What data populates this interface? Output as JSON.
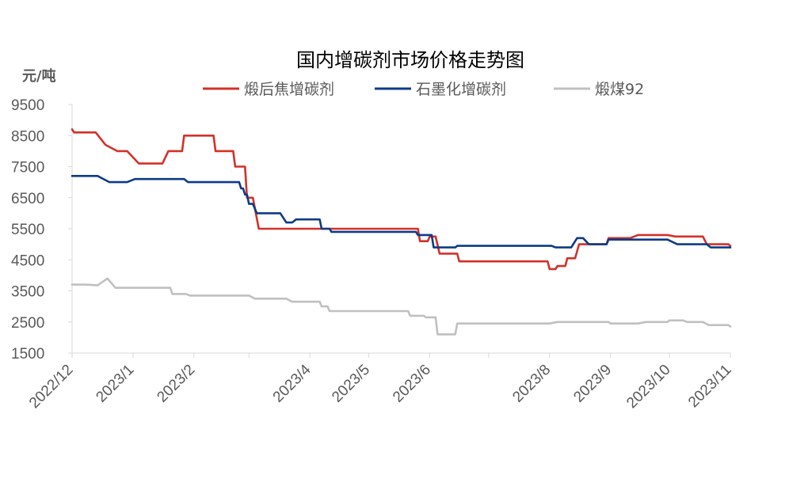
{
  "chart_data": {
    "type": "line",
    "title": "国内增碳剂市场价格走势图",
    "ylabel": "元/吨",
    "xlabel": "",
    "ylim": [
      1500,
      9500
    ],
    "yticks": [
      1500,
      2500,
      3500,
      4500,
      5500,
      6500,
      7500,
      8500,
      9500
    ],
    "xlim": [
      "2022-12-01",
      "2023-11-01"
    ],
    "xticks": [
      {
        "date": "2022-12-01",
        "label": "2022/12"
      },
      {
        "date": "2023-01-01",
        "label": "2023/1"
      },
      {
        "date": "2023-02-01",
        "label": "2023/2"
      },
      {
        "date": "2023-03-01",
        "label": ""
      },
      {
        "date": "2023-04-01",
        "label": "2023/4"
      },
      {
        "date": "2023-05-01",
        "label": "2023/5"
      },
      {
        "date": "2023-06-01",
        "label": "2023/6"
      },
      {
        "date": "2023-07-01",
        "label": ""
      },
      {
        "date": "2023-08-01",
        "label": "2023/8"
      },
      {
        "date": "2023-09-01",
        "label": "2023/9"
      },
      {
        "date": "2023-10-01",
        "label": "2023/10"
      },
      {
        "date": "2023-11-01",
        "label": "2023/11"
      }
    ],
    "grid": false,
    "legend_position": "top",
    "series": [
      {
        "name": "煅后焦增碳剂",
        "color": "#d2312a",
        "points": [
          [
            "2022-12-01",
            8700
          ],
          [
            "2022-12-02",
            8600
          ],
          [
            "2022-12-13",
            8600
          ],
          [
            "2022-12-18",
            8200
          ],
          [
            "2022-12-24",
            8000
          ],
          [
            "2022-12-29",
            8000
          ],
          [
            "2023-01-04",
            7600
          ],
          [
            "2023-01-16",
            7600
          ],
          [
            "2023-01-19",
            8000
          ],
          [
            "2023-01-26",
            8000
          ],
          [
            "2023-01-27",
            8500
          ],
          [
            "2023-02-11",
            8500
          ],
          [
            "2023-02-12",
            8000
          ],
          [
            "2023-02-21",
            8000
          ],
          [
            "2023-02-22",
            7500
          ],
          [
            "2023-02-27",
            7500
          ],
          [
            "2023-02-28",
            6500
          ],
          [
            "2023-03-03",
            6500
          ],
          [
            "2023-03-06",
            5500
          ],
          [
            "2023-04-21",
            5500
          ],
          [
            "2023-04-24",
            5500
          ],
          [
            "2023-05-26",
            5500
          ],
          [
            "2023-05-27",
            5100
          ],
          [
            "2023-05-31",
            5100
          ],
          [
            "2023-06-01",
            5250
          ],
          [
            "2023-06-04",
            5250
          ],
          [
            "2023-06-06",
            4700
          ],
          [
            "2023-06-15",
            4700
          ],
          [
            "2023-06-16",
            4450
          ],
          [
            "2023-07-31",
            4450
          ],
          [
            "2023-08-01",
            4200
          ],
          [
            "2023-08-04",
            4200
          ],
          [
            "2023-08-05",
            4300
          ],
          [
            "2023-08-09",
            4300
          ],
          [
            "2023-08-10",
            4550
          ],
          [
            "2023-08-14",
            4550
          ],
          [
            "2023-08-16",
            5000
          ],
          [
            "2023-08-23",
            5000
          ],
          [
            "2023-08-30",
            5000
          ],
          [
            "2023-08-31",
            5200
          ],
          [
            "2023-09-11",
            5200
          ],
          [
            "2023-09-15",
            5300
          ],
          [
            "2023-09-30",
            5300
          ],
          [
            "2023-10-04",
            5250
          ],
          [
            "2023-10-18",
            5250
          ],
          [
            "2023-10-20",
            5000
          ],
          [
            "2023-10-31",
            5000
          ],
          [
            "2023-11-01",
            4950
          ]
        ]
      },
      {
        "name": "石墨化增碳剂",
        "color": "#0d3b86",
        "points": [
          [
            "2022-12-01",
            7200
          ],
          [
            "2022-12-14",
            7200
          ],
          [
            "2022-12-20",
            7000
          ],
          [
            "2022-12-29",
            7000
          ],
          [
            "2023-01-02",
            7100
          ],
          [
            "2023-01-27",
            7100
          ],
          [
            "2023-01-29",
            7000
          ],
          [
            "2023-02-24",
            7000
          ],
          [
            "2023-02-25",
            6800
          ],
          [
            "2023-02-26",
            6800
          ],
          [
            "2023-02-27",
            6600
          ],
          [
            "2023-02-28",
            6600
          ],
          [
            "2023-03-01",
            6300
          ],
          [
            "2023-03-03",
            6300
          ],
          [
            "2023-03-05",
            6000
          ],
          [
            "2023-03-17",
            6000
          ],
          [
            "2023-03-20",
            5700
          ],
          [
            "2023-03-23",
            5700
          ],
          [
            "2023-03-25",
            5800
          ],
          [
            "2023-04-06",
            5800
          ],
          [
            "2023-04-07",
            5500
          ],
          [
            "2023-04-11",
            5500
          ],
          [
            "2023-04-12",
            5400
          ],
          [
            "2023-05-25",
            5400
          ],
          [
            "2023-05-26",
            5300
          ],
          [
            "2023-06-02",
            5300
          ],
          [
            "2023-06-03",
            4900
          ],
          [
            "2023-06-14",
            4900
          ],
          [
            "2023-06-15",
            4950
          ],
          [
            "2023-08-02",
            4950
          ],
          [
            "2023-08-04",
            4900
          ],
          [
            "2023-08-12",
            4900
          ],
          [
            "2023-08-15",
            5200
          ],
          [
            "2023-08-18",
            5200
          ],
          [
            "2023-08-21",
            5000
          ],
          [
            "2023-08-30",
            5000
          ],
          [
            "2023-08-31",
            5150
          ],
          [
            "2023-09-30",
            5150
          ],
          [
            "2023-10-05",
            5000
          ],
          [
            "2023-10-20",
            5000
          ],
          [
            "2023-10-22",
            4900
          ],
          [
            "2023-11-01",
            4900
          ]
        ]
      },
      {
        "name": "煅煤92",
        "color": "#c0c0c0",
        "points": [
          [
            "2022-12-01",
            3700
          ],
          [
            "2022-12-08",
            3700
          ],
          [
            "2022-12-14",
            3680
          ],
          [
            "2022-12-19",
            3900
          ],
          [
            "2022-12-23",
            3600
          ],
          [
            "2023-01-20",
            3600
          ],
          [
            "2023-01-21",
            3400
          ],
          [
            "2023-01-28",
            3400
          ],
          [
            "2023-01-30",
            3350
          ],
          [
            "2023-03-01",
            3350
          ],
          [
            "2023-03-04",
            3250
          ],
          [
            "2023-03-20",
            3250
          ],
          [
            "2023-03-23",
            3150
          ],
          [
            "2023-04-06",
            3150
          ],
          [
            "2023-04-07",
            3000
          ],
          [
            "2023-04-10",
            3000
          ],
          [
            "2023-04-11",
            2850
          ],
          [
            "2023-05-21",
            2850
          ],
          [
            "2023-05-22",
            2700
          ],
          [
            "2023-05-29",
            2700
          ],
          [
            "2023-05-30",
            2650
          ],
          [
            "2023-06-04",
            2650
          ],
          [
            "2023-06-05",
            2100
          ],
          [
            "2023-06-14",
            2100
          ],
          [
            "2023-06-15",
            2450
          ],
          [
            "2023-08-01",
            2450
          ],
          [
            "2023-08-05",
            2500
          ],
          [
            "2023-08-31",
            2500
          ],
          [
            "2023-09-01",
            2450
          ],
          [
            "2023-09-15",
            2450
          ],
          [
            "2023-09-19",
            2500
          ],
          [
            "2023-09-30",
            2500
          ],
          [
            "2023-10-01",
            2550
          ],
          [
            "2023-10-08",
            2550
          ],
          [
            "2023-10-10",
            2500
          ],
          [
            "2023-10-18",
            2500
          ],
          [
            "2023-10-21",
            2400
          ],
          [
            "2023-10-31",
            2400
          ],
          [
            "2023-11-01",
            2350
          ]
        ]
      }
    ]
  }
}
